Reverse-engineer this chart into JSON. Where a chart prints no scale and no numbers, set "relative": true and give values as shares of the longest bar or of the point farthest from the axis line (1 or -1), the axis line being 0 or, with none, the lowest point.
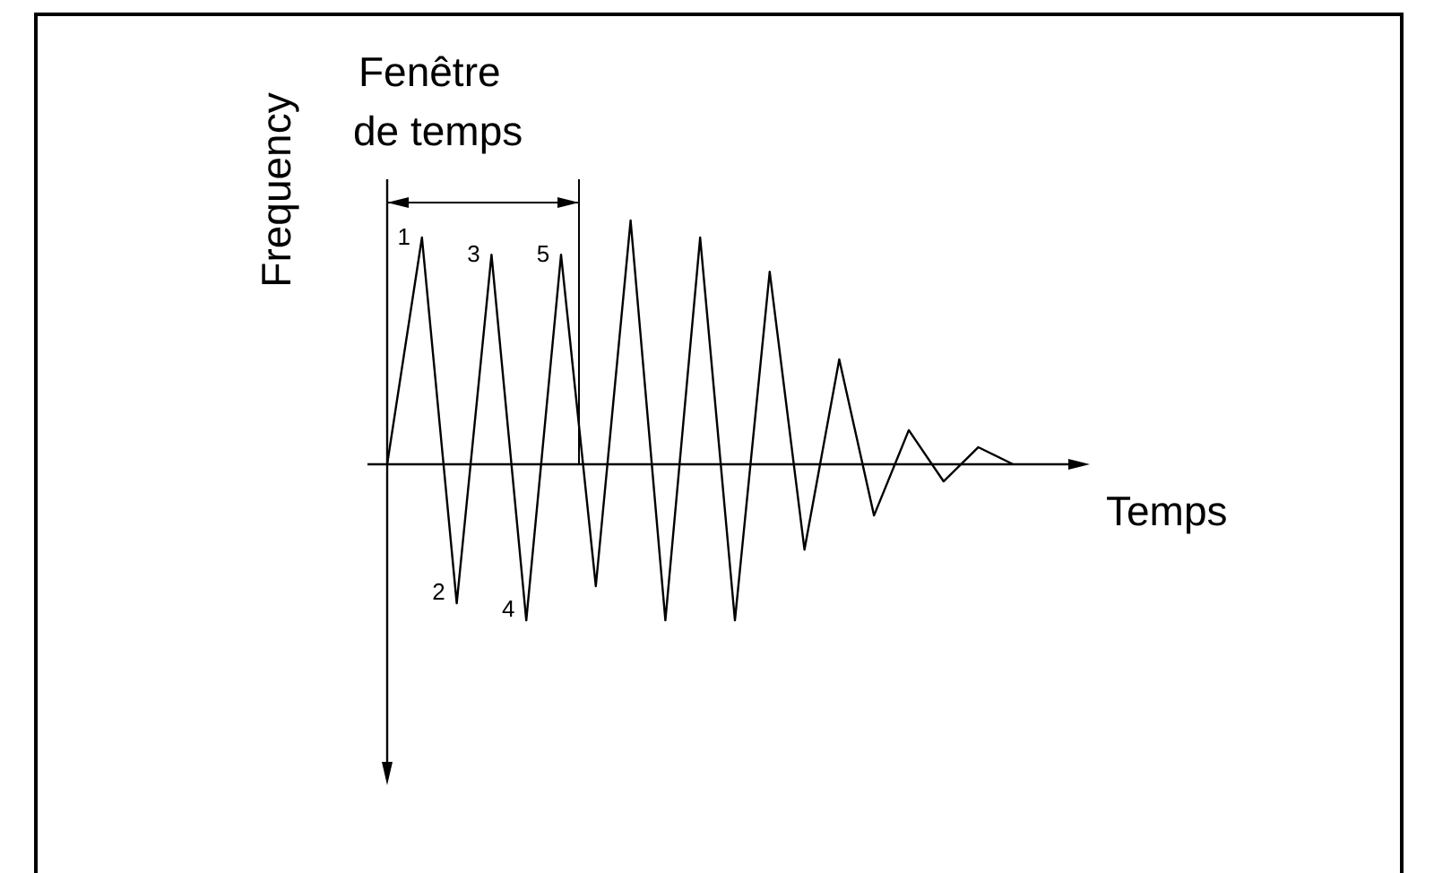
{
  "chart_data": {
    "type": "line",
    "relative": true,
    "xlabel": "Temps",
    "ylabel": "Frequency",
    "color": "#000000",
    "categories": [
      null,
      null,
      null,
      null,
      null,
      null,
      null,
      null,
      null,
      null,
      null,
      null,
      null,
      null,
      null,
      null,
      null,
      null,
      null
    ],
    "values": [
      0,
      0.93,
      -0.57,
      0.86,
      -0.64,
      0.86,
      -0.5,
      1,
      -0.64,
      0.93,
      -0.64,
      0.79,
      -0.35,
      0.43,
      -0.21,
      0.14,
      -0.07,
      0.07,
      0
    ],
    "annotations": [
      "Fenêtre de temps",
      "1",
      "2",
      "3",
      "4",
      "5"
    ]
  }
}
